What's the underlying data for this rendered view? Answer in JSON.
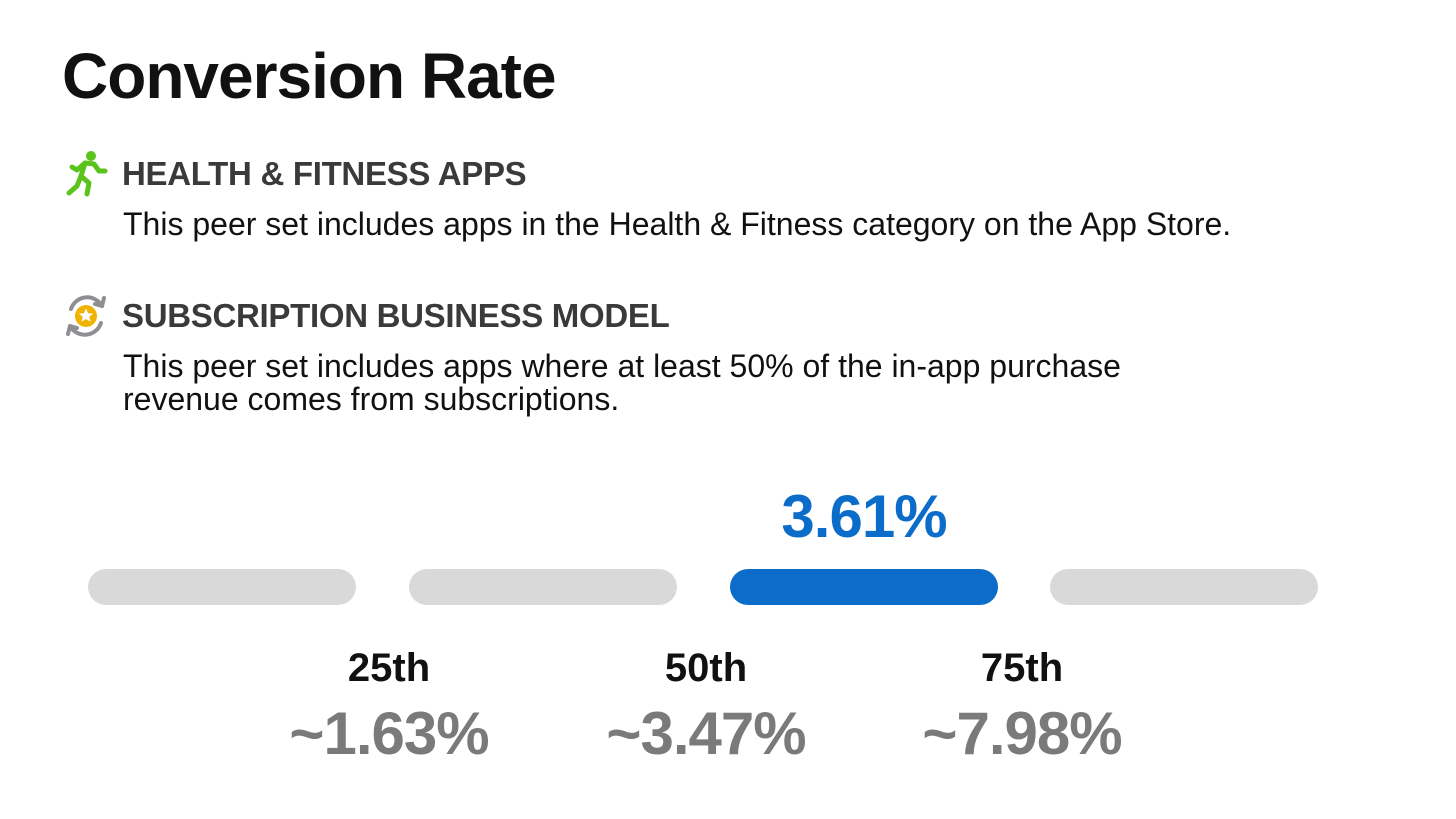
{
  "title": "Conversion Rate",
  "peer_sets": [
    {
      "icon": "running-figure-icon",
      "icon_color": "#5ac41c",
      "title": "HEALTH & FITNESS APPS",
      "description": "This peer set includes apps in the Health & Fitness category on the App Store."
    },
    {
      "icon": "subscription-star-icon",
      "icon_color": "#f0b400",
      "title": "SUBSCRIPTION BUSINESS MODEL",
      "description": "This peer set includes apps where at least 50% of the in-app purchase revenue comes from subscriptions."
    }
  ],
  "highlight": {
    "value": "3.61%",
    "color": "#0b6dc9",
    "active_segment": 3
  },
  "segments": [
    {
      "active": false
    },
    {
      "active": false
    },
    {
      "active": true
    },
    {
      "active": false
    }
  ],
  "percentiles": [
    {
      "label": "25th",
      "value": "~1.63%"
    },
    {
      "label": "50th",
      "value": "~3.47%"
    },
    {
      "label": "75th",
      "value": "~7.98%"
    }
  ]
}
